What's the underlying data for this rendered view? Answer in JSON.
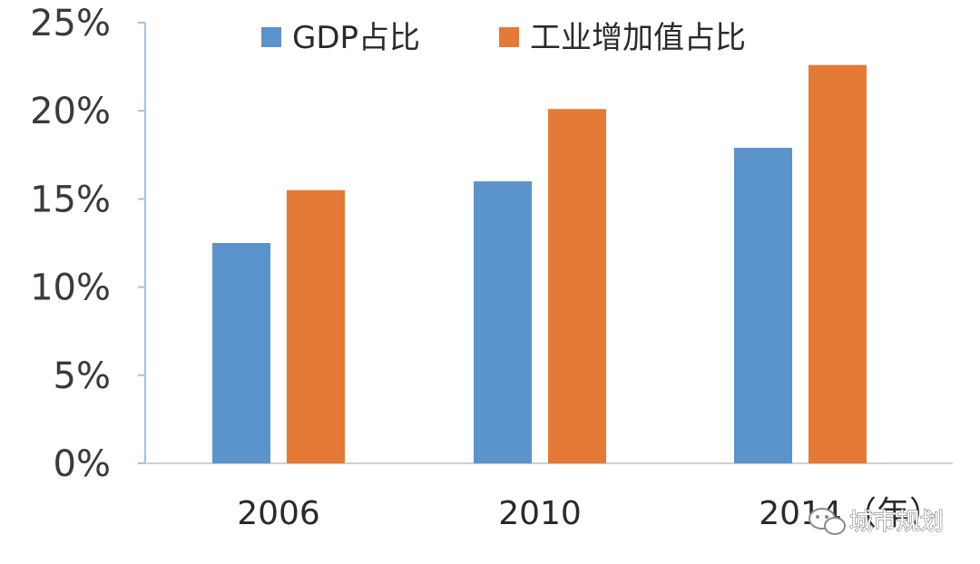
{
  "chart_data": {
    "type": "bar",
    "categories": [
      "2006",
      "2010",
      "2014"
    ],
    "series": [
      {
        "name": "GDP占比",
        "values": [
          12.5,
          16.0,
          17.9
        ],
        "color": "#5b93cc"
      },
      {
        "name": "工业增加值占比",
        "values": [
          15.5,
          20.1,
          22.6
        ],
        "color": "#e47a35"
      }
    ],
    "ylim": [
      0,
      25
    ],
    "yticks": [
      0,
      5,
      10,
      15,
      20,
      25
    ],
    "ytick_labels": [
      "0%",
      "5%",
      "10%",
      "15%",
      "20%",
      "25%"
    ],
    "x_unit": "（年）",
    "legend": "top",
    "grid": false
  },
  "watermark": {
    "text": "城市规划",
    "icon": "wechat-icon"
  }
}
